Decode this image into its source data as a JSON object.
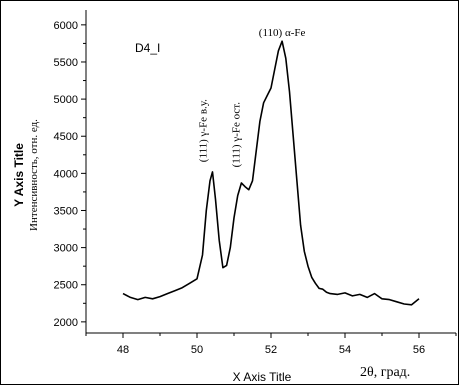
{
  "chart_data": {
    "type": "line",
    "title": "D4_I",
    "xlabel": "X Axis Title",
    "ylabel": "Y Axis Title",
    "ylabel_alt": "Интенсивность, отн. ед.",
    "xlabel_alt": "2θ, град.",
    "xlim": [
      47.0,
      57.0
    ],
    "ylim": [
      1850,
      6200
    ],
    "x_ticks": [
      "48",
      "50",
      "52",
      "54",
      "56"
    ],
    "y_ticks": [
      "2000",
      "2500",
      "3000",
      "3500",
      "4000",
      "4500",
      "5000",
      "5500",
      "6000"
    ],
    "grid": false,
    "annotations": [
      {
        "text": "(111) γ-Fe в.у.",
        "x": 50.25,
        "y": 4150
      },
      {
        "text": "(111) γ-Fe ост.",
        "x": 51.15,
        "y": 4080
      },
      {
        "text": "(110) α-Fe",
        "x": 52.3,
        "y": 5850
      }
    ],
    "series": [
      {
        "x": [
          48.0,
          48.2,
          48.4,
          48.6,
          48.8,
          49.0,
          49.2,
          49.4,
          49.6,
          49.8,
          50.0,
          50.15,
          50.25,
          50.35,
          50.42,
          50.5,
          50.6,
          50.7,
          50.8,
          50.9,
          51.0,
          51.1,
          51.2,
          51.3,
          51.4,
          51.5,
          51.6,
          51.7,
          51.8,
          51.9,
          52.0,
          52.1,
          52.2,
          52.3,
          52.4,
          52.5,
          52.6,
          52.7,
          52.8,
          52.9,
          53.0,
          53.1,
          53.2,
          53.3,
          53.4,
          53.5,
          53.6,
          53.8,
          54.0,
          54.2,
          54.4,
          54.6,
          54.8,
          55.0,
          55.2,
          55.4,
          55.6,
          55.8,
          56.0
        ],
        "values": [
          2380,
          2330,
          2300,
          2330,
          2310,
          2340,
          2380,
          2420,
          2460,
          2520,
          2580,
          2900,
          3500,
          3900,
          4020,
          3650,
          3100,
          2730,
          2760,
          3000,
          3400,
          3700,
          3870,
          3820,
          3780,
          3900,
          4300,
          4700,
          4950,
          5050,
          5150,
          5400,
          5650,
          5780,
          5550,
          5100,
          4500,
          3900,
          3300,
          2950,
          2750,
          2600,
          2520,
          2450,
          2440,
          2400,
          2380,
          2370,
          2390,
          2350,
          2370,
          2330,
          2380,
          2310,
          2300,
          2270,
          2240,
          2230,
          2310
        ]
      }
    ]
  }
}
